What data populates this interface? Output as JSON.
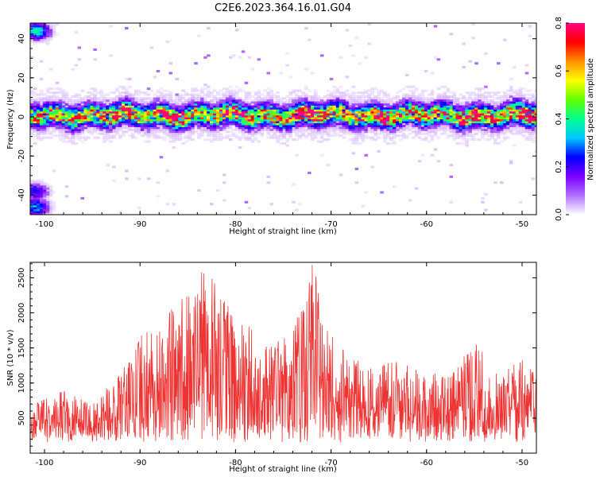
{
  "figure": {
    "title": "C2E6.2023.364.16.01.G04"
  },
  "chart_data": [
    {
      "type": "heatmap",
      "xlabel": "Height of straight line (km)",
      "ylabel": "Frequency (Hz)",
      "xlim": [
        -101.5,
        -48.5
      ],
      "ylim": [
        -50,
        48
      ],
      "xticks": [
        -100,
        -90,
        -80,
        -70,
        -60,
        -50
      ],
      "yticks": [
        -40,
        -20,
        0,
        20,
        40
      ],
      "colorbar": {
        "label": "Normalized spectral amplitude",
        "range": [
          0.0,
          0.8
        ],
        "ticks": [
          "0.0",
          "0.2",
          "0.4",
          "0.6",
          "0.8"
        ],
        "colormap": [
          "#ffffff",
          "#b070ff",
          "#7a00ff",
          "#0000ff",
          "#00c8ff",
          "#00ff90",
          "#60ff00",
          "#ffff00",
          "#ff9000",
          "#ff0000",
          "#ff0080"
        ]
      },
      "band": {
        "center_hz": 1,
        "half_width_hz": 6,
        "peaks": [
          {
            "x": -92.3,
            "y": 1,
            "v": 0.72
          },
          {
            "x": -86.5,
            "y": 0,
            "v": 0.7
          },
          {
            "x": -80.0,
            "y": 0,
            "v": 0.62
          },
          {
            "x": -72.0,
            "y": -2,
            "v": 0.75
          },
          {
            "x": -65.0,
            "y": 1,
            "v": 0.55
          },
          {
            "x": -55.0,
            "y": -2,
            "v": 0.6
          },
          {
            "x": -49.5,
            "y": 1,
            "v": 0.78
          }
        ]
      },
      "side_features": [
        {
          "x": -100.8,
          "y": 44,
          "v": 0.45
        },
        {
          "x": -101.0,
          "y": -38,
          "v": 0.3
        },
        {
          "x": -101.0,
          "y": -46,
          "v": 0.4
        }
      ]
    },
    {
      "type": "line",
      "xlabel": "Height of straight line (km)",
      "ylabel": "SNR (10 * v/v)",
      "xlim": [
        -101.5,
        -48.5
      ],
      "ylim": [
        0,
        2720
      ],
      "xticks": [
        -100,
        -90,
        -80,
        -70,
        -60,
        -50
      ],
      "yticks": [
        500,
        1000,
        1500,
        2000,
        2500
      ],
      "color": "#ee3333",
      "envelope": [
        {
          "x": -101.5,
          "y": 700
        },
        {
          "x": -98,
          "y": 900
        },
        {
          "x": -95,
          "y": 700
        },
        {
          "x": -92,
          "y": 1200
        },
        {
          "x": -90,
          "y": 1700
        },
        {
          "x": -88,
          "y": 2000
        },
        {
          "x": -86,
          "y": 2100
        },
        {
          "x": -84.5,
          "y": 2550
        },
        {
          "x": -82.5,
          "y": 2600
        },
        {
          "x": -80,
          "y": 2000
        },
        {
          "x": -77,
          "y": 1600
        },
        {
          "x": -74,
          "y": 1700
        },
        {
          "x": -72,
          "y": 2700
        },
        {
          "x": -69,
          "y": 1500
        },
        {
          "x": -66,
          "y": 1200
        },
        {
          "x": -63,
          "y": 1400
        },
        {
          "x": -60,
          "y": 1100
        },
        {
          "x": -57,
          "y": 1200
        },
        {
          "x": -55,
          "y": 1650
        },
        {
          "x": -52,
          "y": 1100
        },
        {
          "x": -50,
          "y": 1450
        },
        {
          "x": -48.5,
          "y": 1100
        }
      ]
    }
  ]
}
